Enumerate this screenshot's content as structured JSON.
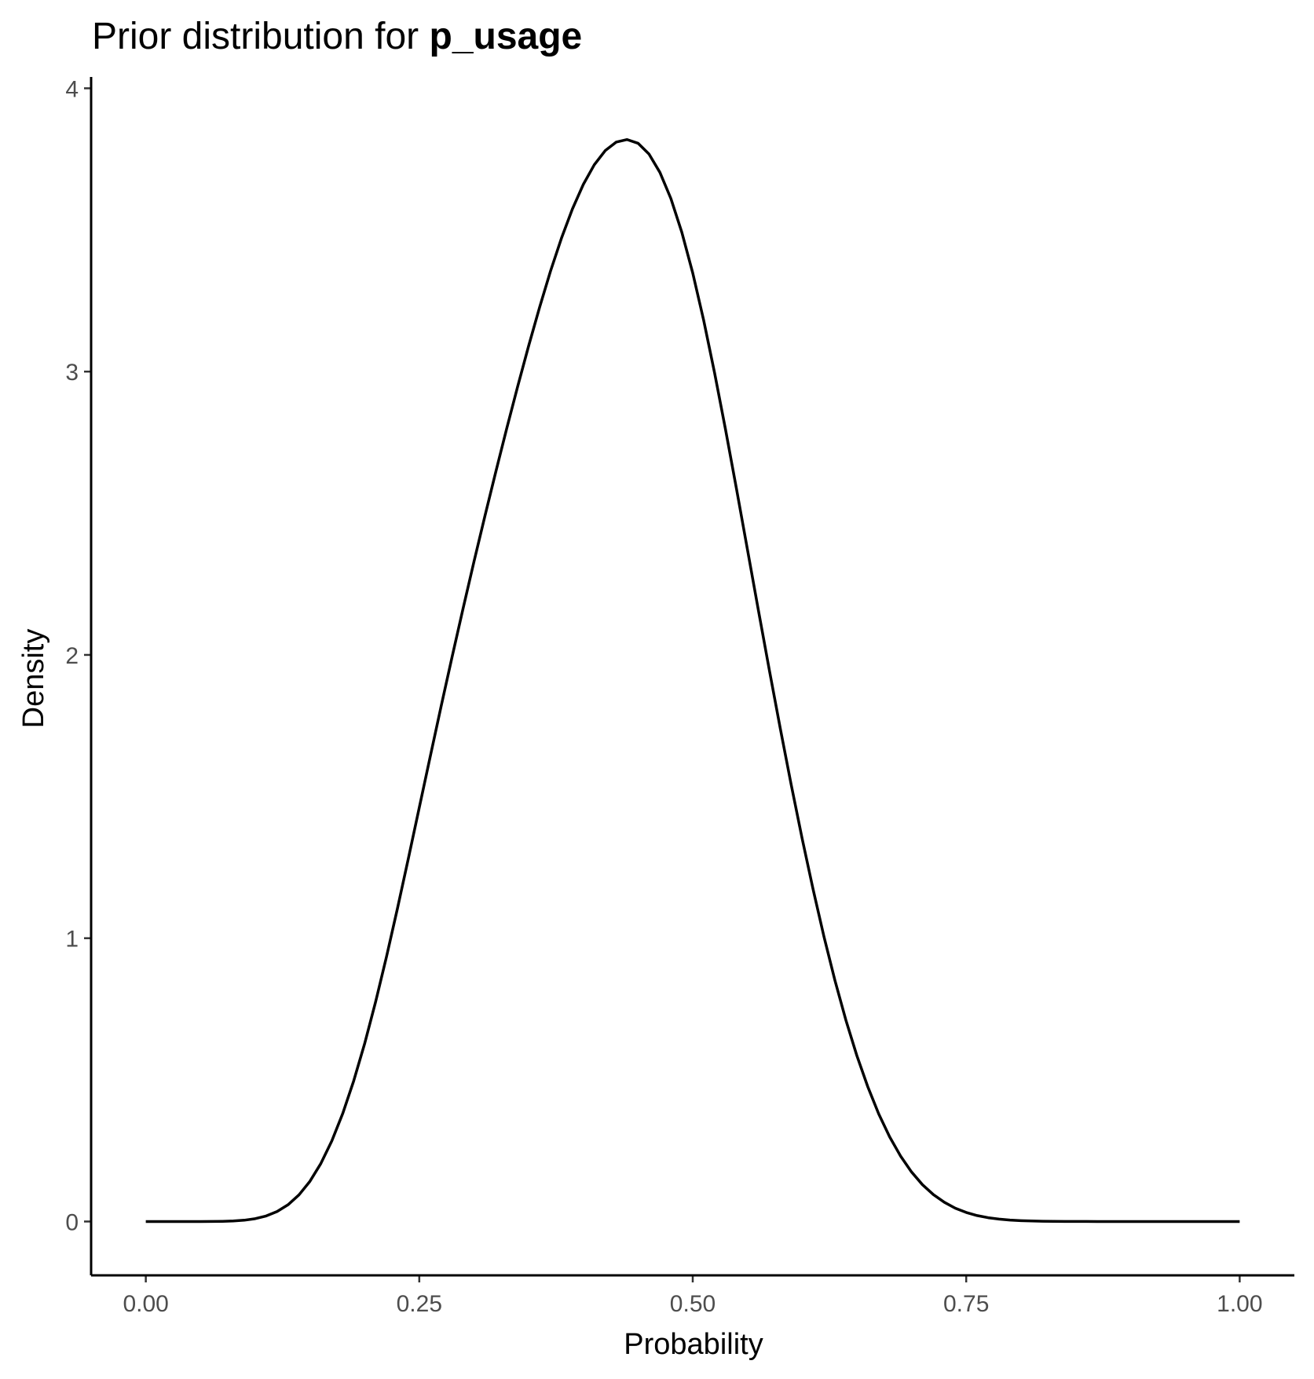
{
  "chart_data": {
    "type": "line",
    "title_regular": "Prior distribution for ",
    "title_bold": "p_usage",
    "xlabel": "Probability",
    "ylabel": "Density",
    "xlim": [
      -0.05,
      1.05
    ],
    "ylim": [
      -0.19,
      4.04
    ],
    "x_ticks": [
      0.0,
      0.25,
      0.5,
      0.75,
      1.0
    ],
    "x_tick_labels": [
      "0.00",
      "0.25",
      "0.50",
      "0.75",
      "1.00"
    ],
    "y_ticks": [
      0,
      1,
      2,
      3,
      4
    ],
    "y_tick_labels": [
      "0",
      "1",
      "2",
      "3",
      "4"
    ],
    "grid": false,
    "legend": "none",
    "line_color": "#000000",
    "series": [
      {
        "x": [
          0.0,
          0.01,
          0.02,
          0.03,
          0.04,
          0.05,
          0.06,
          0.07,
          0.08,
          0.09,
          0.1,
          0.11,
          0.12,
          0.13,
          0.14,
          0.15,
          0.16,
          0.17,
          0.18,
          0.19,
          0.2,
          0.21,
          0.22,
          0.23,
          0.24,
          0.25,
          0.26,
          0.27,
          0.28,
          0.29,
          0.3,
          0.31,
          0.32,
          0.33,
          0.34,
          0.35,
          0.36,
          0.37,
          0.38,
          0.39,
          0.4,
          0.41,
          0.42,
          0.43,
          0.44,
          0.45,
          0.46,
          0.47,
          0.48,
          0.49,
          0.5,
          0.51,
          0.52,
          0.53,
          0.54,
          0.55,
          0.56,
          0.57,
          0.58,
          0.59,
          0.6,
          0.61,
          0.62,
          0.63,
          0.64,
          0.65,
          0.66,
          0.67,
          0.68,
          0.69,
          0.7,
          0.71,
          0.72,
          0.73,
          0.74,
          0.75,
          0.76,
          0.77,
          0.78,
          0.79,
          0.8,
          0.81,
          0.82,
          0.83,
          0.84,
          0.85,
          0.86,
          0.87,
          0.88,
          0.89,
          0.9,
          0.91,
          0.92,
          0.93,
          0.94,
          0.95,
          0.96,
          0.97,
          0.98,
          0.99,
          1.0
        ],
        "y": [
          0.0,
          0.0,
          0.0,
          0.0,
          0.0,
          0.0,
          0.0002,
          0.0007,
          0.0019,
          0.0046,
          0.01,
          0.0195,
          0.0351,
          0.0591,
          0.0939,
          0.1417,
          0.2046,
          0.2841,
          0.381,
          0.4956,
          0.627,
          0.774,
          0.934,
          1.104,
          1.281,
          1.461,
          1.641,
          1.819,
          1.993,
          2.163,
          2.329,
          2.49,
          2.647,
          2.8,
          2.948,
          3.091,
          3.227,
          3.355,
          3.471,
          3.574,
          3.661,
          3.73,
          3.78,
          3.81,
          3.819,
          3.806,
          3.768,
          3.703,
          3.611,
          3.492,
          3.348,
          3.181,
          2.995,
          2.795,
          2.586,
          2.372,
          2.158,
          1.947,
          1.741,
          1.542,
          1.352,
          1.173,
          1.005,
          0.851,
          0.711,
          0.586,
          0.476,
          0.38,
          0.299,
          0.231,
          0.175,
          0.13,
          0.095,
          0.068,
          0.047,
          0.032,
          0.021,
          0.0135,
          0.0085,
          0.0052,
          0.0031,
          0.0018,
          0.001,
          0.0005,
          0.0003,
          0.0001,
          0.0001,
          0.0,
          0.0,
          0.0,
          0.0,
          0.0,
          0.0,
          0.0,
          0.0,
          0.0,
          0.0,
          0.0,
          0.0,
          0.0,
          0.0
        ]
      }
    ]
  }
}
